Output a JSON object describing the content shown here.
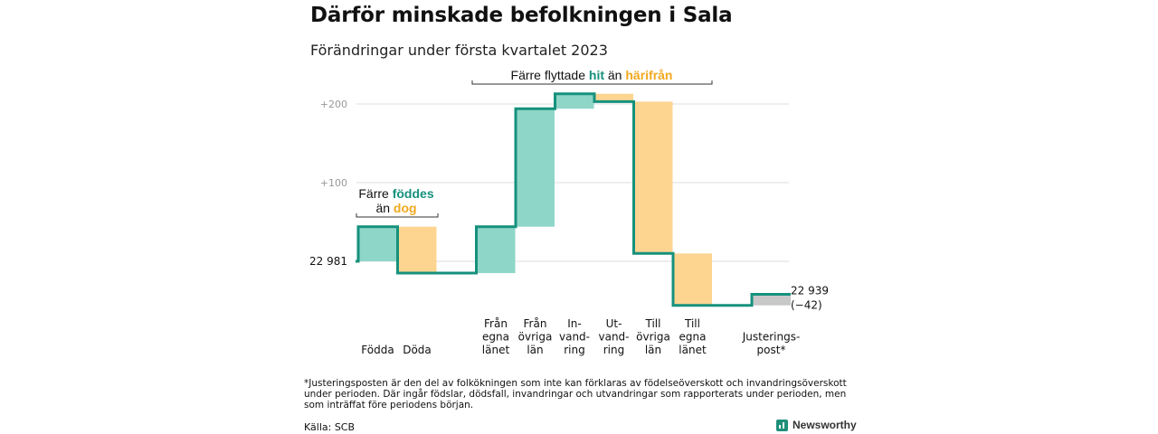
{
  "chart_data": {
    "type": "waterfall",
    "title": "Därför minskade befolkningen i Sala",
    "subtitle": "Förändringar under första kvartalet 2023",
    "start_value": 22981,
    "start_label": "22 981",
    "end_label_value": "22 939",
    "end_label_change": "(−42)",
    "yticks": [
      {
        "offset": 100,
        "label": "+100"
      },
      {
        "offset": 200,
        "label": "+200"
      }
    ],
    "categories": [
      {
        "lines": [
          "Födda"
        ],
        "change": 44,
        "kind": "in"
      },
      {
        "lines": [
          "Döda"
        ],
        "change": -59,
        "kind": "out"
      },
      {
        "lines": [
          "Från",
          "egna",
          "länet"
        ],
        "change": 59,
        "kind": "in"
      },
      {
        "lines": [
          "Från",
          "övriga",
          "län"
        ],
        "change": 150,
        "kind": "in"
      },
      {
        "lines": [
          "In-",
          "vand-",
          "ring"
        ],
        "change": 19,
        "kind": "in"
      },
      {
        "lines": [
          "Ut-",
          "vand-",
          "ring"
        ],
        "change": -10,
        "kind": "out"
      },
      {
        "lines": [
          "Till",
          "övriga",
          "län"
        ],
        "change": -193,
        "kind": "out"
      },
      {
        "lines": [
          "Till",
          "egna",
          "länet"
        ],
        "change": -66,
        "kind": "out"
      },
      {
        "lines": [
          "Justerings-",
          "post*"
        ],
        "change": 14,
        "kind": "adjust"
      }
    ],
    "annotations": {
      "births": {
        "pre": "Färre ",
        "hl1": "föddes",
        "line2_pre": "än ",
        "hl2": "dog"
      },
      "migration": {
        "pre": "Färre flyttade ",
        "hl1": "hit",
        "mid": " än ",
        "hl2": "härifrån"
      }
    },
    "colors": {
      "in": "#8ed6c8",
      "out": "#fdd591",
      "adjust": "#c8c8c8",
      "line": "#16917d",
      "hl_teal": "#16917d",
      "hl_orange": "#f0a81e",
      "grid": "#dddddd"
    }
  },
  "footnote": "*Justeringsposten är den del av folkökningen som inte kan förklaras av födelseöverskott och invandringsöverskott under perioden. Där ingår födslar, dödsfall, invandringar och utvandringar som rapporterats under perioden, men som inträffat före periodens början.",
  "source": "Källa: SCB",
  "brand": "Newsworthy"
}
